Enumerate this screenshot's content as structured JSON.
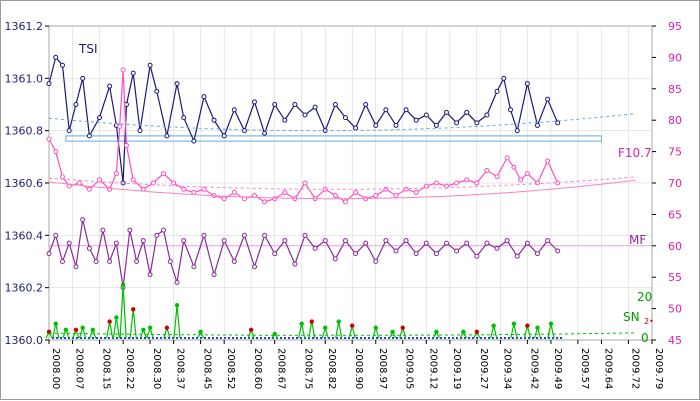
{
  "chart_data": {
    "type": "line",
    "title": "",
    "colors": {
      "plot_bg": "#ffffff",
      "frame": "#808080",
      "grid": "#d0d0d0",
      "left_axis_text": "#1f1f6f",
      "right_axis_text": "#e020b0",
      "tsi": "#1a1a78",
      "f107": "#ff4fc0",
      "mf": "#8a2a9a",
      "sn": "#00c000",
      "sn_baseline": "#2244cc",
      "sn_marker": "#cc0000"
    },
    "left_axis": {
      "ylim": [
        1360.0,
        1361.2
      ],
      "ticks": [
        "1360.0",
        "1360.2",
        "1360.4",
        "1360.6",
        "1360.8",
        "1361.0",
        "1361.2"
      ]
    },
    "right_axis": {
      "ylim": [
        45,
        95
      ],
      "ticks": [
        "45",
        "50",
        "55",
        "60",
        "65",
        "70",
        "75",
        "80",
        "85",
        "90",
        "95"
      ]
    },
    "x_axis": {
      "xlim": [
        2008.0,
        2009.79
      ],
      "ticks": [
        "2008.00",
        "2008.07",
        "2008.15",
        "2008.22",
        "2008.30",
        "2008.37",
        "2008.45",
        "2008.52",
        "2008.60",
        "2008.67",
        "2008.75",
        "2008.82",
        "2008.90",
        "2008.97",
        "2009.05",
        "2009.12",
        "2009.19",
        "2009.27",
        "2009.34",
        "2009.42",
        "2009.49",
        "2009.57",
        "2009.64",
        "2009.72",
        "2009.79"
      ]
    },
    "sn_axis_labels": {
      "top": "20",
      "bottom": "0"
    },
    "rectangle": {
      "x": [
        2008.05,
        2009.64
      ],
      "y": [
        1360.76,
        1360.78
      ]
    },
    "series": [
      {
        "name": "TSI",
        "axis": "left",
        "x": [
          2008.0,
          2008.02,
          2008.04,
          2008.06,
          2008.08,
          2008.1,
          2008.12,
          2008.15,
          2008.18,
          2008.2,
          2008.22,
          2008.23,
          2008.25,
          2008.27,
          2008.3,
          2008.32,
          2008.35,
          2008.38,
          2008.4,
          2008.43,
          2008.46,
          2008.49,
          2008.52,
          2008.55,
          2008.58,
          2008.61,
          2008.64,
          2008.67,
          2008.7,
          2008.73,
          2008.76,
          2008.79,
          2008.82,
          2008.85,
          2008.88,
          2008.91,
          2008.94,
          2008.97,
          2009.0,
          2009.03,
          2009.06,
          2009.09,
          2009.12,
          2009.15,
          2009.18,
          2009.21,
          2009.24,
          2009.27,
          2009.3,
          2009.33,
          2009.35,
          2009.37,
          2009.39,
          2009.42,
          2009.45,
          2009.48,
          2009.51
        ],
        "values": [
          1360.98,
          1361.08,
          1361.05,
          1360.8,
          1360.9,
          1361.0,
          1360.78,
          1360.85,
          1360.97,
          1360.82,
          1360.6,
          1360.9,
          1361.02,
          1360.8,
          1361.05,
          1360.95,
          1360.78,
          1360.98,
          1360.85,
          1360.76,
          1360.93,
          1360.84,
          1360.78,
          1360.88,
          1360.8,
          1360.91,
          1360.79,
          1360.9,
          1360.84,
          1360.9,
          1360.86,
          1360.89,
          1360.8,
          1360.9,
          1360.85,
          1360.81,
          1360.9,
          1360.82,
          1360.88,
          1360.82,
          1360.88,
          1360.84,
          1360.86,
          1360.82,
          1360.87,
          1360.83,
          1360.87,
          1360.83,
          1360.86,
          1360.95,
          1361.0,
          1360.88,
          1360.8,
          1360.98,
          1360.82,
          1360.92,
          1360.83
        ]
      },
      {
        "name": "F10.7",
        "axis": "right",
        "x": [
          2008.0,
          2008.02,
          2008.04,
          2008.06,
          2008.09,
          2008.12,
          2008.15,
          2008.18,
          2008.2,
          2008.21,
          2008.22,
          2008.23,
          2008.25,
          2008.28,
          2008.31,
          2008.34,
          2008.37,
          2008.4,
          2008.43,
          2008.46,
          2008.49,
          2008.52,
          2008.55,
          2008.58,
          2008.61,
          2008.64,
          2008.67,
          2008.7,
          2008.73,
          2008.76,
          2008.79,
          2008.82,
          2008.85,
          2008.88,
          2008.91,
          2008.94,
          2008.97,
          2009.0,
          2009.03,
          2009.06,
          2009.09,
          2009.12,
          2009.15,
          2009.18,
          2009.21,
          2009.24,
          2009.27,
          2009.3,
          2009.33,
          2009.36,
          2009.38,
          2009.4,
          2009.42,
          2009.45,
          2009.48,
          2009.51
        ],
        "values": [
          77.0,
          75.0,
          71.0,
          69.5,
          70.0,
          69.0,
          70.5,
          69.0,
          71.5,
          79.0,
          88.0,
          76.0,
          70.5,
          69.0,
          70.0,
          71.5,
          70.0,
          69.0,
          68.5,
          69.0,
          68.0,
          67.5,
          68.5,
          67.5,
          68.0,
          67.0,
          67.5,
          68.5,
          67.5,
          70.0,
          67.5,
          69.0,
          68.0,
          67.0,
          68.5,
          67.5,
          68.0,
          69.0,
          68.0,
          69.0,
          68.5,
          69.5,
          70.0,
          69.5,
          70.0,
          70.5,
          70.0,
          72.0,
          71.0,
          74.0,
          72.5,
          70.5,
          71.5,
          70.0,
          73.5,
          70.0
        ]
      },
      {
        "name": "MF",
        "axis": "left",
        "x": [
          2008.0,
          2008.02,
          2008.04,
          2008.06,
          2008.08,
          2008.1,
          2008.12,
          2008.14,
          2008.16,
          2008.18,
          2008.2,
          2008.22,
          2008.24,
          2008.26,
          2008.28,
          2008.3,
          2008.32,
          2008.34,
          2008.36,
          2008.38,
          2008.4,
          2008.43,
          2008.46,
          2008.49,
          2008.52,
          2008.55,
          2008.58,
          2008.61,
          2008.64,
          2008.67,
          2008.7,
          2008.73,
          2008.76,
          2008.79,
          2008.82,
          2008.85,
          2008.88,
          2008.91,
          2008.94,
          2008.97,
          2009.0,
          2009.03,
          2009.06,
          2009.09,
          2009.12,
          2009.15,
          2009.18,
          2009.21,
          2009.24,
          2009.27,
          2009.3,
          2009.33,
          2009.36,
          2009.39,
          2009.42,
          2009.45,
          2009.48,
          2009.51
        ],
        "values": [
          1360.33,
          1360.4,
          1360.3,
          1360.37,
          1360.28,
          1360.46,
          1360.35,
          1360.3,
          1360.42,
          1360.3,
          1360.37,
          1360.2,
          1360.42,
          1360.3,
          1360.38,
          1360.25,
          1360.4,
          1360.42,
          1360.3,
          1360.22,
          1360.38,
          1360.28,
          1360.4,
          1360.25,
          1360.38,
          1360.3,
          1360.4,
          1360.28,
          1360.4,
          1360.33,
          1360.38,
          1360.29,
          1360.4,
          1360.35,
          1360.38,
          1360.31,
          1360.38,
          1360.33,
          1360.37,
          1360.3,
          1360.38,
          1360.34,
          1360.38,
          1360.33,
          1360.37,
          1360.33,
          1360.37,
          1360.34,
          1360.37,
          1360.32,
          1360.37,
          1360.35,
          1360.38,
          1360.32,
          1360.37,
          1360.33,
          1360.38,
          1360.34
        ]
      },
      {
        "name": "SN",
        "axis": "sn",
        "x": [
          2008.0,
          2008.02,
          2008.05,
          2008.08,
          2008.1,
          2008.13,
          2008.18,
          2008.2,
          2008.22,
          2008.25,
          2008.28,
          2008.3,
          2008.35,
          2008.38,
          2008.45,
          2008.6,
          2008.67,
          2008.75,
          2008.78,
          2008.82,
          2008.86,
          2008.9,
          2008.97,
          2009.02,
          2009.05,
          2009.15,
          2009.23,
          2009.27,
          2009.32,
          2009.38,
          2009.42,
          2009.45,
          2009.49
        ],
        "values": [
          3,
          7,
          4,
          4,
          5,
          4,
          8,
          10,
          26,
          14,
          4,
          5,
          5,
          16,
          3,
          4,
          2,
          7,
          8,
          5,
          8,
          6,
          5,
          3,
          5,
          3,
          3,
          3,
          6,
          7,
          6,
          5,
          7
        ]
      }
    ]
  },
  "labels": {
    "tsi": "TSI",
    "f107": "F10.7",
    "mf": "MF",
    "sn": "SN",
    "sn_sub": "2•"
  }
}
